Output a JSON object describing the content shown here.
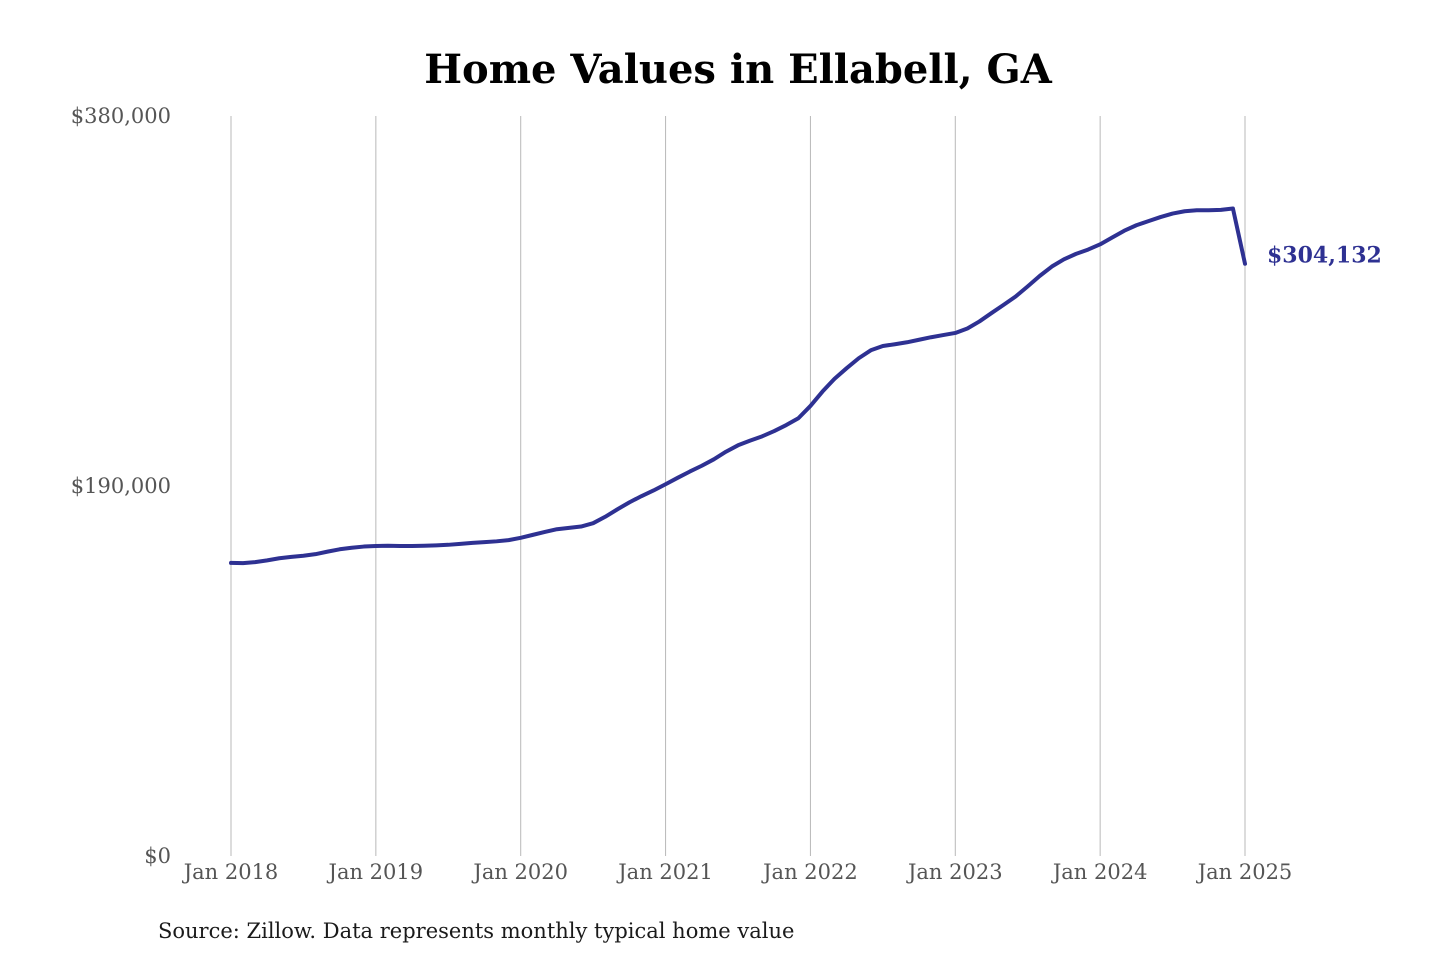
{
  "chart_data": {
    "type": "line",
    "title": "Home Values in Ellabell, GA",
    "xlabel": "",
    "ylabel": "",
    "x_range": [
      "2018-01",
      "2025-01"
    ],
    "ylim": [
      0,
      380000
    ],
    "y_ticks": [
      0,
      190000,
      380000
    ],
    "y_tick_labels": [
      "$0",
      "$190,000",
      "$380,000"
    ],
    "x_ticks": [
      "2018-01",
      "2019-01",
      "2020-01",
      "2021-01",
      "2022-01",
      "2023-01",
      "2024-01",
      "2025-01"
    ],
    "x_tick_labels": [
      "Jan 2018",
      "Jan 2019",
      "Jan 2020",
      "Jan 2021",
      "Jan 2022",
      "Jan 2023",
      "Jan 2024",
      "Jan 2025"
    ],
    "grid": "vertical",
    "line_color": "#2e3192",
    "series": [
      {
        "x": [
          "2018-01",
          "2018-02",
          "2018-03",
          "2018-04",
          "2018-05",
          "2018-06",
          "2018-07",
          "2018-08",
          "2018-09",
          "2018-10",
          "2018-11",
          "2018-12",
          "2019-01",
          "2019-02",
          "2019-03",
          "2019-04",
          "2019-05",
          "2019-06",
          "2019-07",
          "2019-08",
          "2019-09",
          "2019-10",
          "2019-11",
          "2019-12",
          "2020-01",
          "2020-02",
          "2020-03",
          "2020-04",
          "2020-05",
          "2020-06",
          "2020-07",
          "2020-08",
          "2020-09",
          "2020-10",
          "2020-11",
          "2020-12",
          "2021-01",
          "2021-02",
          "2021-03",
          "2021-04",
          "2021-05",
          "2021-06",
          "2021-07",
          "2021-08",
          "2021-09",
          "2021-10",
          "2021-11",
          "2021-12",
          "2022-01",
          "2022-02",
          "2022-03",
          "2022-04",
          "2022-05",
          "2022-06",
          "2022-07",
          "2022-08",
          "2022-09",
          "2022-10",
          "2022-11",
          "2022-12",
          "2023-01",
          "2023-02",
          "2023-03",
          "2023-04",
          "2023-05",
          "2023-06",
          "2023-07",
          "2023-08",
          "2023-09",
          "2023-10",
          "2023-11",
          "2023-12",
          "2024-01",
          "2024-02",
          "2024-03",
          "2024-04",
          "2024-05",
          "2024-06",
          "2024-07",
          "2024-08",
          "2024-09",
          "2024-10",
          "2024-11",
          "2024-12",
          "2025-01"
        ],
        "values": [
          150500,
          150400,
          150900,
          151800,
          152900,
          153600,
          154200,
          155000,
          156300,
          157500,
          158300,
          158900,
          159200,
          159300,
          159200,
          159200,
          159300,
          159500,
          159800,
          160300,
          160800,
          161200,
          161600,
          162200,
          163400,
          164900,
          166400,
          167800,
          168500,
          169200,
          170900,
          174200,
          178000,
          181600,
          184800,
          187700,
          190900,
          194200,
          197400,
          200400,
          203700,
          207600,
          210900,
          213300,
          215500,
          218200,
          221300,
          224800,
          231100,
          238500,
          245100,
          250500,
          255600,
          259700,
          261900,
          262800,
          263800,
          265100,
          266400,
          267500,
          268600,
          270900,
          274500,
          278800,
          283000,
          287300,
          292500,
          297900,
          302700,
          306400,
          309200,
          311400,
          314100,
          317600,
          321100,
          323900,
          326000,
          328100,
          329900,
          331100,
          331600,
          331600,
          331800,
          332500,
          304132
        ],
        "end_label": "$304,132"
      }
    ]
  },
  "source": "Source: Zillow. Data represents monthly typical home value"
}
